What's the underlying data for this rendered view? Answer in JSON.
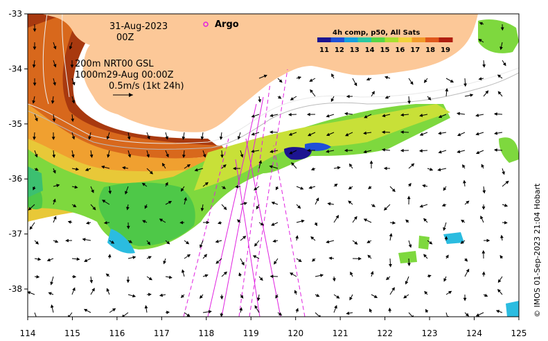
{
  "map": {
    "date": "31-Aug-2023",
    "time": "00Z",
    "contours": "200m  NRT00 GSL",
    "contours2": "1000m29-Aug 00:00Z",
    "vector_scale": "0.5m/s (1kt 24h)",
    "argo_label": "Argo",
    "colorbar_title": "4h comp, p50, All Sats",
    "colorbar_ticks": [
      "11",
      "12",
      "13",
      "14",
      "15",
      "16",
      "17",
      "18",
      "19"
    ],
    "colorbar_colors": [
      "#1c1490",
      "#1f4fd8",
      "#13a0e0",
      "#2bc8a0",
      "#56d646",
      "#a9e030",
      "#f2d23a",
      "#f29a2a",
      "#e0581c",
      "#b01e10"
    ],
    "x_ticks": [
      "114",
      "115",
      "116",
      "117",
      "118",
      "119",
      "120",
      "121",
      "122",
      "123",
      "124",
      "125"
    ],
    "y_ticks": [
      "-33",
      "-34",
      "-35",
      "-36",
      "-37",
      "-38"
    ],
    "credit": "© IMOS 01-Sep-2023 21:04 Hobart",
    "land_color": "#fcc898",
    "argo_color": "#e020e0"
  }
}
